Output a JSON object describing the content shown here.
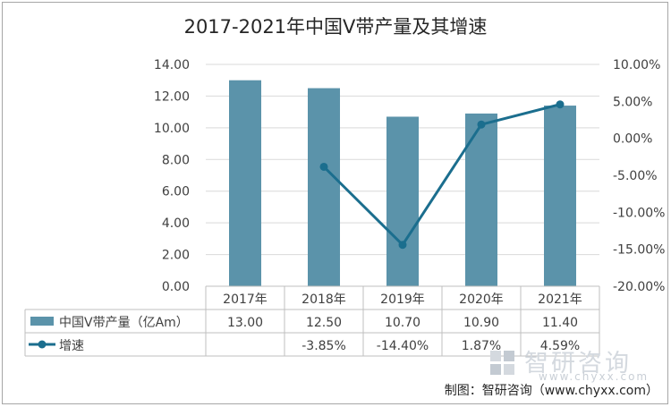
{
  "title": "2017-2021年中国V带产量及其增速",
  "credit": "制图：智研咨询（www.chyxx.com）",
  "watermark": {
    "name": "智研咨询",
    "url": "www.chyxx.com"
  },
  "colors": {
    "bar": "#5b93aa",
    "line": "#1b6e8e",
    "grid": "#d9d9d9",
    "table_border": "#bfbfbf"
  },
  "chart_data": {
    "type": "bar",
    "categories": [
      "2017年",
      "2018年",
      "2019年",
      "2020年",
      "2021年"
    ],
    "left_axis": {
      "ylim": [
        0,
        14
      ],
      "ticks": [
        "0.00",
        "2.00",
        "4.00",
        "6.00",
        "8.00",
        "10.00",
        "12.00",
        "14.00"
      ]
    },
    "right_axis": {
      "ylim": [
        -20,
        10
      ],
      "ticks": [
        "-20.00%",
        "-15.00%",
        "-10.00%",
        "-5.00%",
        "0.00%",
        "5.00%",
        "10.00%"
      ]
    },
    "series": [
      {
        "name": "中国V带产量（亿Am）",
        "type": "bar",
        "axis": "left",
        "values": [
          13.0,
          12.5,
          10.7,
          10.9,
          11.4
        ],
        "labels": [
          "13.00",
          "12.50",
          "10.70",
          "10.90",
          "11.40"
        ]
      },
      {
        "name": "增速",
        "type": "line",
        "axis": "right",
        "values": [
          null,
          -3.85,
          -14.4,
          1.87,
          4.59
        ],
        "labels": [
          "",
          "-3.85%",
          "-14.40%",
          "1.87%",
          "4.59%"
        ]
      }
    ],
    "grid": true,
    "legend": "data-table"
  }
}
